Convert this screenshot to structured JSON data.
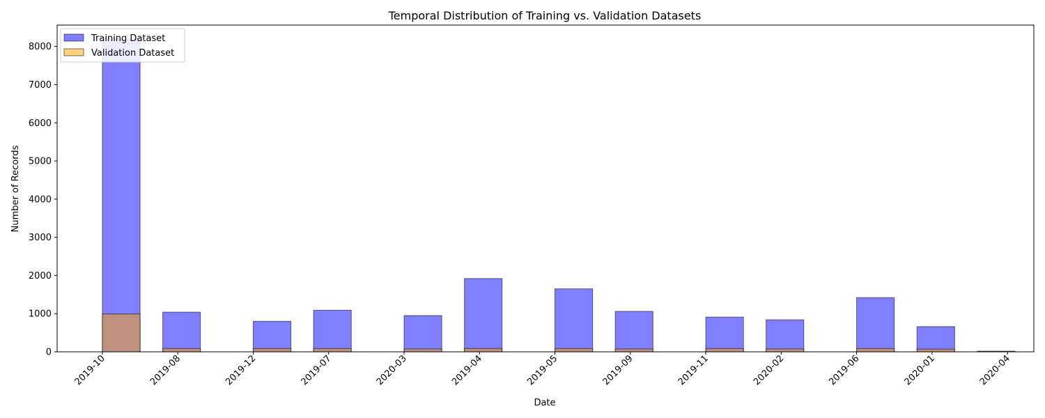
{
  "chart_data": {
    "type": "bar",
    "title": "Temporal Distribution of Training vs. Validation Datasets",
    "xlabel": "Date",
    "ylabel": "Number of Records",
    "xticks": [
      "2019-10",
      "2019-08",
      "2019-12",
      "2019-07",
      "2020-03",
      "2019-04",
      "2019-05",
      "2019-09",
      "2019-11",
      "2020-02",
      "2019-06",
      "2020-01",
      "2020-04"
    ],
    "yticks": [
      0,
      1000,
      2000,
      3000,
      4000,
      5000,
      6000,
      7000,
      8000
    ],
    "ylim": [
      0,
      8560
    ],
    "xlim": [
      -0.6,
      12.35
    ],
    "grid": false,
    "legend_position": "top-left",
    "series": [
      {
        "name": "Training Dataset",
        "color": "#0000ff",
        "opacity": 0.5,
        "bars": [
          {
            "x": 0.0,
            "value": 8200
          },
          {
            "x": 0.8,
            "value": 1040
          },
          {
            "x": 2.0,
            "value": 800
          },
          {
            "x": 2.8,
            "value": 1090
          },
          {
            "x": 4.0,
            "value": 950
          },
          {
            "x": 4.8,
            "value": 1920
          },
          {
            "x": 6.0,
            "value": 1650
          },
          {
            "x": 6.8,
            "value": 1060
          },
          {
            "x": 8.0,
            "value": 910
          },
          {
            "x": 8.8,
            "value": 840
          },
          {
            "x": 10.0,
            "value": 1420
          },
          {
            "x": 10.8,
            "value": 660
          },
          {
            "x": 11.6,
            "value": 18
          }
        ]
      },
      {
        "name": "Validation Dataset",
        "color": "#ffa500",
        "opacity": 0.5,
        "bars": [
          {
            "x": 0.0,
            "value": 990
          },
          {
            "x": 0.8,
            "value": 85
          },
          {
            "x": 2.0,
            "value": 85
          },
          {
            "x": 2.8,
            "value": 85
          },
          {
            "x": 4.0,
            "value": 75
          },
          {
            "x": 4.8,
            "value": 85
          },
          {
            "x": 6.0,
            "value": 85
          },
          {
            "x": 6.8,
            "value": 75
          },
          {
            "x": 8.0,
            "value": 85
          },
          {
            "x": 8.8,
            "value": 75
          },
          {
            "x": 10.0,
            "value": 85
          },
          {
            "x": 10.8,
            "value": 70
          },
          {
            "x": 11.6,
            "value": 2
          }
        ]
      }
    ]
  }
}
